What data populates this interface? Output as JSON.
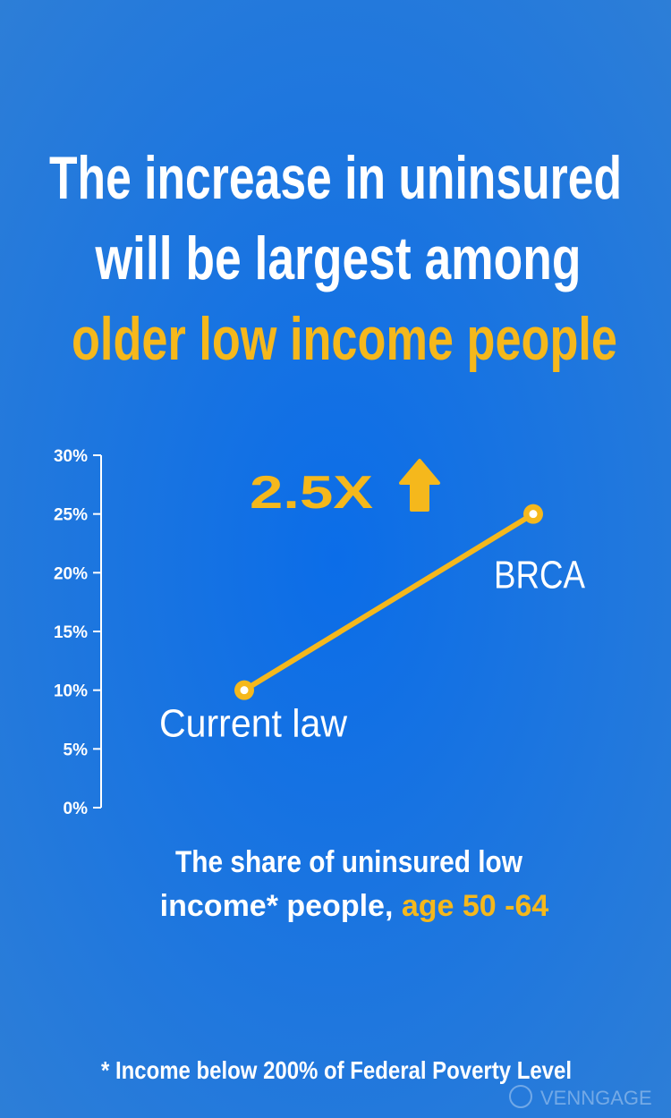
{
  "chart_data": {
    "type": "line",
    "title": [
      "The increase in uninsured",
      "will be largest among",
      "older low income people"
    ],
    "categories": [
      "Current law",
      "BRCA"
    ],
    "values": [
      10,
      25
    ],
    "color": "#f5b81c",
    "ylim": [
      0,
      30
    ],
    "yticks": [
      {
        "value": 0,
        "label": "0%"
      },
      {
        "value": 5,
        "label": "5%"
      },
      {
        "value": 10,
        "label": "10%"
      },
      {
        "value": 15,
        "label": "15%"
      },
      {
        "value": 20,
        "label": "20%"
      },
      {
        "value": 25,
        "label": "25%"
      },
      {
        "value": 30,
        "label": "30%"
      }
    ],
    "annotation": "2.5X",
    "caption": [
      "The share of uninsured low",
      "income* people,",
      "age 50 -64"
    ],
    "footnote": "* Income below 200% of Federal Poverty Level",
    "watermark": "VENNGAGE"
  }
}
